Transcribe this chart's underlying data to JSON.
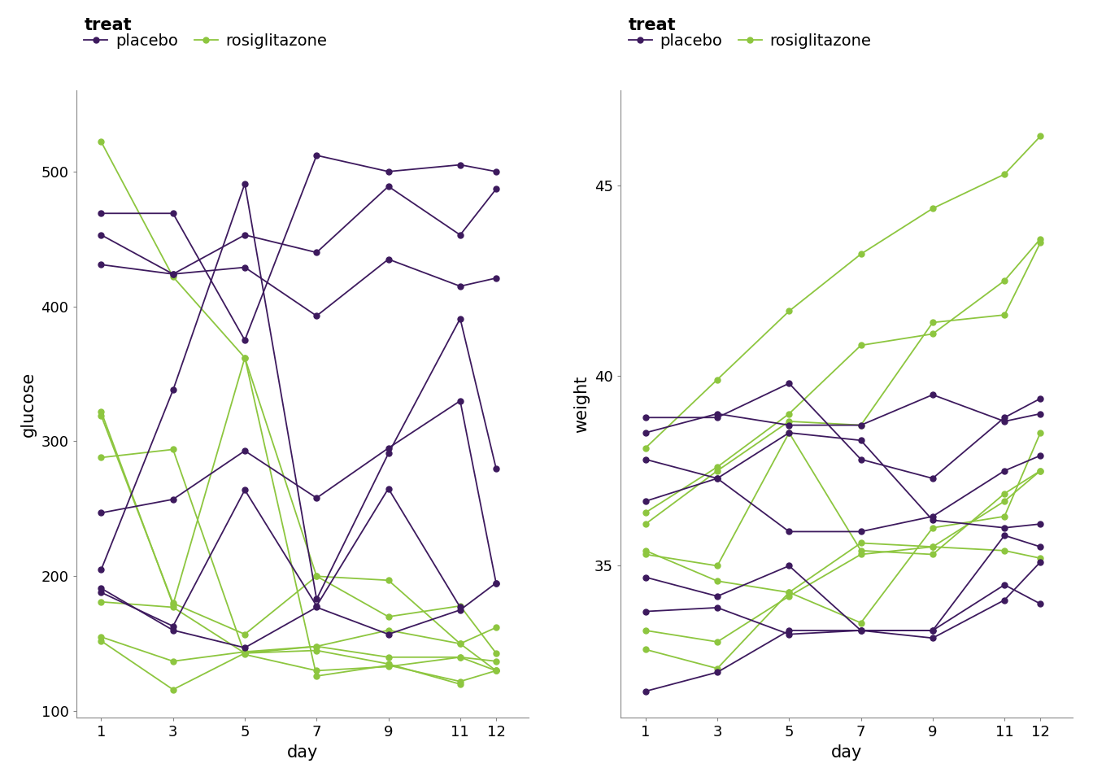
{
  "days": [
    1,
    3,
    5,
    7,
    9,
    11,
    12
  ],
  "placebo_color": "#3d1a5e",
  "rosiglitazone_color": "#8dc63f",
  "glucose_placebo": [
    [
      469,
      469,
      375,
      512,
      500,
      505,
      500
    ],
    [
      453,
      424,
      453,
      440,
      489,
      453,
      487
    ],
    [
      431,
      424,
      429,
      393,
      435,
      415,
      421
    ],
    [
      247,
      257,
      293,
      258,
      295,
      330,
      195
    ],
    [
      205,
      338,
      491,
      183,
      291,
      391,
      280
    ],
    [
      191,
      160,
      147,
      177,
      157,
      175,
      195
    ],
    [
      188,
      163,
      264,
      178,
      265,
      177,
      null
    ]
  ],
  "glucose_rosiglitazone": [
    [
      522,
      422,
      362,
      126,
      134,
      122,
      130
    ],
    [
      322,
      179,
      362,
      200,
      197,
      150,
      162
    ],
    [
      319,
      180,
      157,
      200,
      170,
      178,
      143
    ],
    [
      288,
      294,
      142,
      130,
      133,
      140,
      130
    ],
    [
      181,
      177,
      143,
      148,
      160,
      150,
      130
    ],
    [
      155,
      137,
      144,
      148,
      140,
      140,
      137
    ],
    [
      152,
      116,
      143,
      145,
      135,
      120,
      null
    ]
  ],
  "weight_placebo": [
    [
      38.9,
      38.9,
      39.8,
      37.8,
      37.3,
      38.9,
      39.4
    ],
    [
      38.5,
      39.0,
      38.7,
      38.7,
      39.5,
      38.8,
      39.0
    ],
    [
      37.8,
      37.3,
      38.5,
      38.3,
      36.2,
      36.0,
      36.1
    ],
    [
      36.7,
      37.3,
      35.9,
      35.9,
      36.3,
      37.5,
      37.9
    ],
    [
      34.7,
      34.2,
      35.0,
      33.3,
      33.3,
      34.5,
      34.0
    ],
    [
      33.8,
      33.9,
      33.2,
      33.3,
      33.1,
      34.1,
      35.1
    ],
    [
      31.7,
      32.2,
      33.3,
      33.3,
      33.3,
      35.8,
      35.5
    ]
  ],
  "weight_rosiglitazone": [
    [
      38.1,
      39.9,
      41.7,
      43.2,
      44.4,
      45.3,
      46.3
    ],
    [
      36.4,
      37.6,
      39.0,
      40.8,
      41.1,
      42.5,
      43.6
    ],
    [
      36.1,
      37.5,
      38.8,
      38.7,
      41.4,
      41.6,
      43.5
    ],
    [
      35.4,
      34.6,
      34.3,
      35.6,
      35.5,
      36.7,
      37.5
    ],
    [
      35.3,
      35.0,
      38.5,
      35.4,
      35.3,
      36.9,
      37.5
    ],
    [
      33.3,
      33.0,
      34.2,
      35.3,
      35.5,
      35.4,
      35.2
    ],
    [
      32.8,
      32.3,
      34.3,
      33.5,
      36.0,
      36.3,
      38.5
    ]
  ],
  "glucose_ylim": [
    95,
    560
  ],
  "glucose_yticks": [
    100,
    200,
    300,
    400,
    500
  ],
  "weight_ylim": [
    31,
    47.5
  ],
  "weight_yticks": [
    35,
    40,
    45
  ],
  "xticks": [
    1,
    3,
    5,
    7,
    9,
    11,
    12
  ],
  "legend_title": "treat",
  "legend_labels": [
    "placebo",
    "rosiglitazone"
  ],
  "xlabel": "day",
  "ylabel_left": "glucose",
  "ylabel_right": "weight",
  "bg_color": "#ffffff",
  "panel_bg": "#ffffff",
  "marker_size": 5,
  "line_width": 1.3,
  "spine_color": "#888888",
  "tick_label_size": 13,
  "axis_label_size": 15,
  "legend_title_size": 15,
  "legend_label_size": 14
}
